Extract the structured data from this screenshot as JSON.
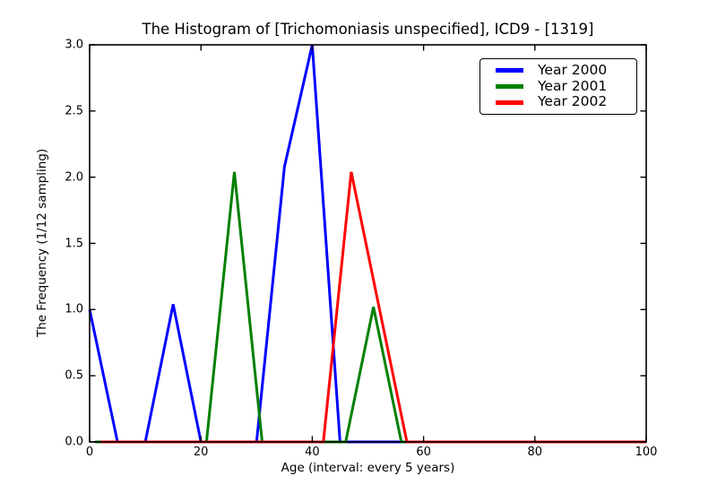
{
  "figure": {
    "title": "The Histogram of [Trichomoniasis unspecified], ICD9 - [1319]",
    "xlabel": "Age (interval: every 5 years)",
    "ylabel": "The Frequency (1/12 sampling)"
  },
  "chart_data": {
    "type": "line",
    "title": "The Histogram of [Trichomoniasis unspecified], ICD9 - [1319]",
    "xlabel": "Age (interval: every 5 years)",
    "ylabel": "The Frequency (1/12 sampling)",
    "xlim": [
      0,
      100
    ],
    "ylim": [
      0.0,
      3.0
    ],
    "xtick_labels": [
      "0",
      "20",
      "40",
      "60",
      "80",
      "100"
    ],
    "ytick_labels": [
      "0.0",
      "0.5",
      "1.0",
      "1.5",
      "2.0",
      "2.5",
      "3.0"
    ],
    "grid": false,
    "legend_position": "upper right",
    "frame_color": "#000000",
    "background_color": "#ffffff",
    "line_width": 3,
    "series": [
      {
        "name": "Year 2000",
        "color": "#0000ff",
        "x": [
          0,
          5,
          10,
          15,
          20,
          25,
          30,
          35,
          40,
          45,
          50,
          55,
          60,
          65,
          70,
          75,
          80,
          85,
          90,
          95,
          100
        ],
        "y": [
          1.0,
          0,
          0,
          1.04,
          0,
          0,
          0,
          2.08,
          3.0,
          0,
          0,
          0,
          0,
          0,
          0,
          0,
          0,
          0,
          0,
          0,
          0
        ]
      },
      {
        "name": "Year 2001",
        "color": "#008000",
        "x": [
          1,
          6,
          11,
          16,
          21,
          26,
          31,
          36,
          41,
          46,
          51,
          56,
          61,
          66,
          71,
          76,
          81,
          86,
          91,
          96,
          100
        ],
        "y": [
          0,
          0,
          0,
          0,
          0,
          2.04,
          0,
          0,
          0,
          0,
          1.02,
          0,
          0,
          0,
          0,
          0,
          0,
          0,
          0,
          0,
          0
        ]
      },
      {
        "name": "Year 2002",
        "color": "#ff0000",
        "x": [
          2,
          7,
          12,
          17,
          22,
          27,
          32,
          37,
          42,
          47,
          52,
          57,
          62,
          67,
          72,
          77,
          82,
          87,
          92,
          97,
          100
        ],
        "y": [
          0,
          0,
          0,
          0,
          0,
          0,
          0,
          0,
          0,
          2.04,
          1.02,
          0,
          0,
          0,
          0,
          0,
          0,
          0,
          0,
          0,
          0
        ]
      }
    ]
  }
}
